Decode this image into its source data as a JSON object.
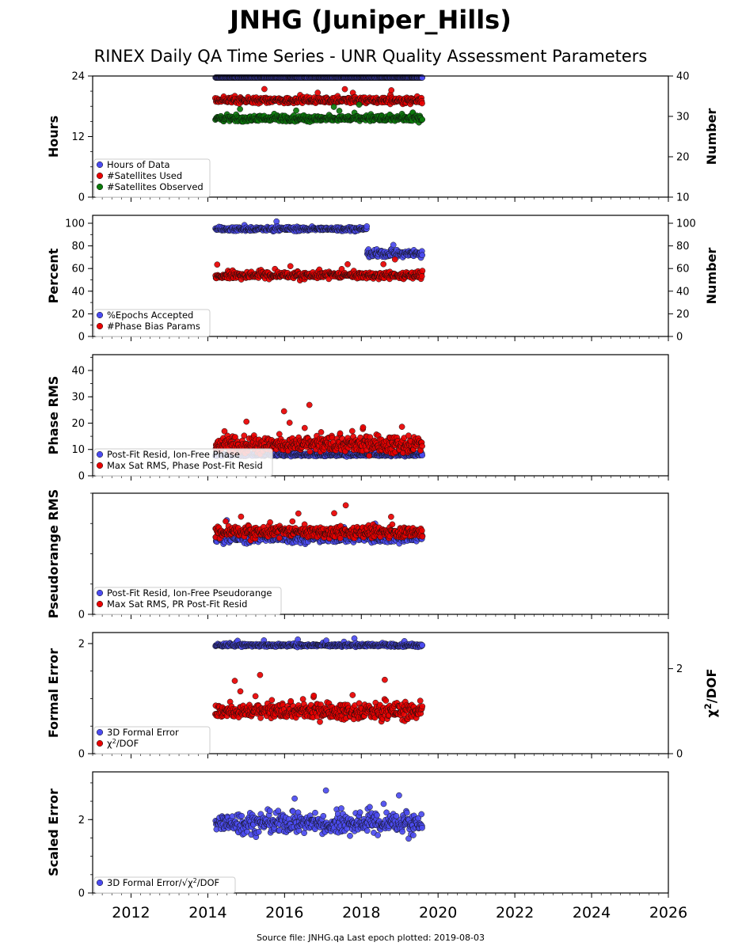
{
  "title": "JNHG (Juniper_Hills)",
  "subtitle": "RINEX Daily QA Time Series - UNR Quality Assessment Parameters",
  "footer": "Source file: JNHG.qa Last epoch plotted: 2019-08-03",
  "colors": {
    "blue": "#4b4bf0",
    "red": "#e80000",
    "green": "#0a7a0a",
    "darkred": "#5a0000",
    "navy": "#14145a"
  },
  "x_axis": {
    "range": [
      2011.0,
      2026.0
    ],
    "ticks": [
      2012,
      2014,
      2016,
      2018,
      2020,
      2022,
      2024,
      2026
    ],
    "tick_labels": [
      "2012",
      "2014",
      "2016",
      "2018",
      "2020",
      "2022",
      "2024",
      "2026"
    ]
  },
  "chart_data": [
    {
      "type": "scatter",
      "ylabel": "Hours",
      "ylim": [
        0,
        24
      ],
      "yticks": [
        0,
        12,
        24
      ],
      "ylabel_right": "Number",
      "ylim_right": [
        10,
        40
      ],
      "yticks_right": [
        10,
        20,
        30,
        40
      ],
      "legend": "bottom-left",
      "series": [
        {
          "name": "Hours of Data",
          "color": "#4b4bf0",
          "axis": "left",
          "x_range": [
            2014.2,
            2019.59
          ],
          "y_mean": 24.0,
          "y_spread": 0.02
        },
        {
          "name": "#Satellites Used",
          "color": "#e80000",
          "axis": "right",
          "x_range": [
            2014.2,
            2019.59
          ],
          "y_mean": 34.0,
          "y_spread": 0.8
        },
        {
          "name": "#Satellites Observed",
          "color": "#0a7a0a",
          "axis": "right",
          "x_range": [
            2014.2,
            2019.59
          ],
          "y_mean": 29.5,
          "y_spread": 0.8
        }
      ]
    },
    {
      "type": "scatter",
      "ylabel": "Percent",
      "ylim": [
        0,
        107
      ],
      "yticks": [
        0,
        20,
        40,
        60,
        80,
        100
      ],
      "ylabel_right": "Number",
      "ylim_right": [
        0,
        107
      ],
      "yticks_right": [
        0,
        20,
        40,
        60,
        80,
        100
      ],
      "legend": "bottom-left",
      "series": [
        {
          "name": "%Epochs Accepted",
          "color": "#4b4bf0",
          "axis": "left",
          "segments": [
            {
              "x_range": [
                2014.2,
                2018.15
              ],
              "y_mean": 95,
              "y_spread": 1.8
            },
            {
              "x_range": [
                2018.15,
                2019.59
              ],
              "y_mean": 73,
              "y_spread": 3.5
            }
          ]
        },
        {
          "name": "#Phase Bias Params",
          "color": "#e80000",
          "axis": "right",
          "x_range": [
            2014.2,
            2019.59
          ],
          "y_mean": 54,
          "y_spread": 3.2
        }
      ]
    },
    {
      "type": "scatter",
      "ylabel": "Phase RMS",
      "ylim": [
        0,
        46
      ],
      "yticks": [
        0,
        10,
        20,
        30,
        40
      ],
      "legend": "bottom-left",
      "series": [
        {
          "name": "Post-Fit Resid, Ion-Free Phase",
          "color": "#4b4bf0",
          "axis": "left",
          "x_range": [
            2014.2,
            2019.59
          ],
          "y_mean": 8.0,
          "y_spread": 0.6
        },
        {
          "name": "Max Sat RMS, Phase Post-Fit Resid",
          "color": "#e80000",
          "axis": "left",
          "x_range": [
            2014.2,
            2019.59
          ],
          "y_mean": 12,
          "y_spread": 3.5
        }
      ]
    },
    {
      "type": "scatter",
      "ylabel": "Pseudorange RMS",
      "ylim": [
        0,
        10
      ],
      "yticks": [
        0
      ],
      "legend": "bottom-left",
      "series": [
        {
          "name": "Post-Fit Resid, Ion-Free Pseudorange",
          "color": "#4b4bf0",
          "axis": "left",
          "x_range": [
            2014.2,
            2019.59
          ],
          "y_mean": 6.3,
          "y_spread": 0.4
        },
        {
          "name": "Max Sat RMS, PR Post-Fit Resid",
          "color": "#e80000",
          "axis": "left",
          "x_range": [
            2014.2,
            2019.59
          ],
          "y_mean": 6.8,
          "y_spread": 0.5
        }
      ]
    },
    {
      "type": "scatter",
      "ylabel": "Formal Error",
      "ylim": [
        0,
        2.2
      ],
      "yticks": [
        0,
        2
      ],
      "ylabel_right": "χ2/DOF",
      "ylim_right": [
        0,
        2.85
      ],
      "yticks_right": [
        0,
        2
      ],
      "legend": "bottom-left",
      "series": [
        {
          "name": "3D Formal Error",
          "color": "#4b4bf0",
          "axis": "left",
          "x_range": [
            2014.2,
            2019.59
          ],
          "y_mean": 1.97,
          "y_spread": 0.03
        },
        {
          "name": "χ2/DOF",
          "color": "#e80000",
          "axis": "right",
          "x_range": [
            2014.2,
            2019.59
          ],
          "y_mean": 1.0,
          "y_spread": 0.2
        }
      ]
    },
    {
      "type": "scatter",
      "ylabel": "Scaled Error",
      "ylim": [
        0,
        3.3
      ],
      "yticks": [
        0,
        2
      ],
      "legend": "bottom-left",
      "series": [
        {
          "name": "3D Formal Error/√χ2/DOF",
          "color": "#4b4bf0",
          "axis": "left",
          "x_range": [
            2014.2,
            2019.59
          ],
          "y_mean": 1.9,
          "y_spread": 0.3
        }
      ]
    }
  ]
}
